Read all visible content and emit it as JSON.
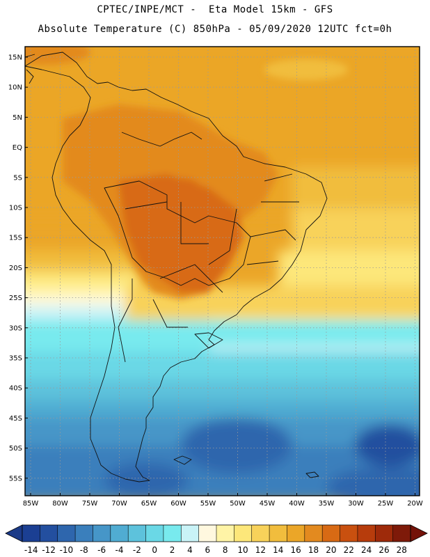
{
  "header": {
    "line1": "CPTEC/INPE/MCT -  Eta Model 15km - GFS",
    "line2": "Absolute Temperature (C) 850hPa - 05/09/2020 12UTC fct=0h"
  },
  "map": {
    "lat_labels": [
      "15N",
      "10N",
      "5N",
      "EQ",
      "5S",
      "10S",
      "15S",
      "20S",
      "25S",
      "30S",
      "35S",
      "40S",
      "45S",
      "50S",
      "55S"
    ],
    "lon_labels": [
      "85W",
      "80W",
      "75W",
      "70W",
      "65W",
      "60W",
      "55W",
      "50W",
      "45W",
      "40W",
      "35W",
      "30W",
      "25W",
      "20W"
    ]
  },
  "colorbar": {
    "labels": [
      "-14",
      "-12",
      "-10",
      "-8",
      "-6",
      "-4",
      "-2",
      "0",
      "2",
      "4",
      "6",
      "8",
      "10",
      "12",
      "14",
      "16",
      "18",
      "20",
      "22",
      "24",
      "26",
      "28"
    ],
    "colors": [
      "#1b3f93",
      "#234f9f",
      "#2e66ad",
      "#3a7fbc",
      "#4696c8",
      "#50acd2",
      "#5dc2dc",
      "#6ad8e6",
      "#78eaee",
      "#c9f3f7",
      "#fff8df",
      "#fff4a6",
      "#fde77a",
      "#f8d25a",
      "#f1bd3d",
      "#eba628",
      "#e38a1f",
      "#d86a14",
      "#c9500f",
      "#b73c0c",
      "#9e2a0a",
      "#7e1a09"
    ],
    "cap_left_color": "#1b3a88",
    "cap_right_color": "#741208"
  }
}
